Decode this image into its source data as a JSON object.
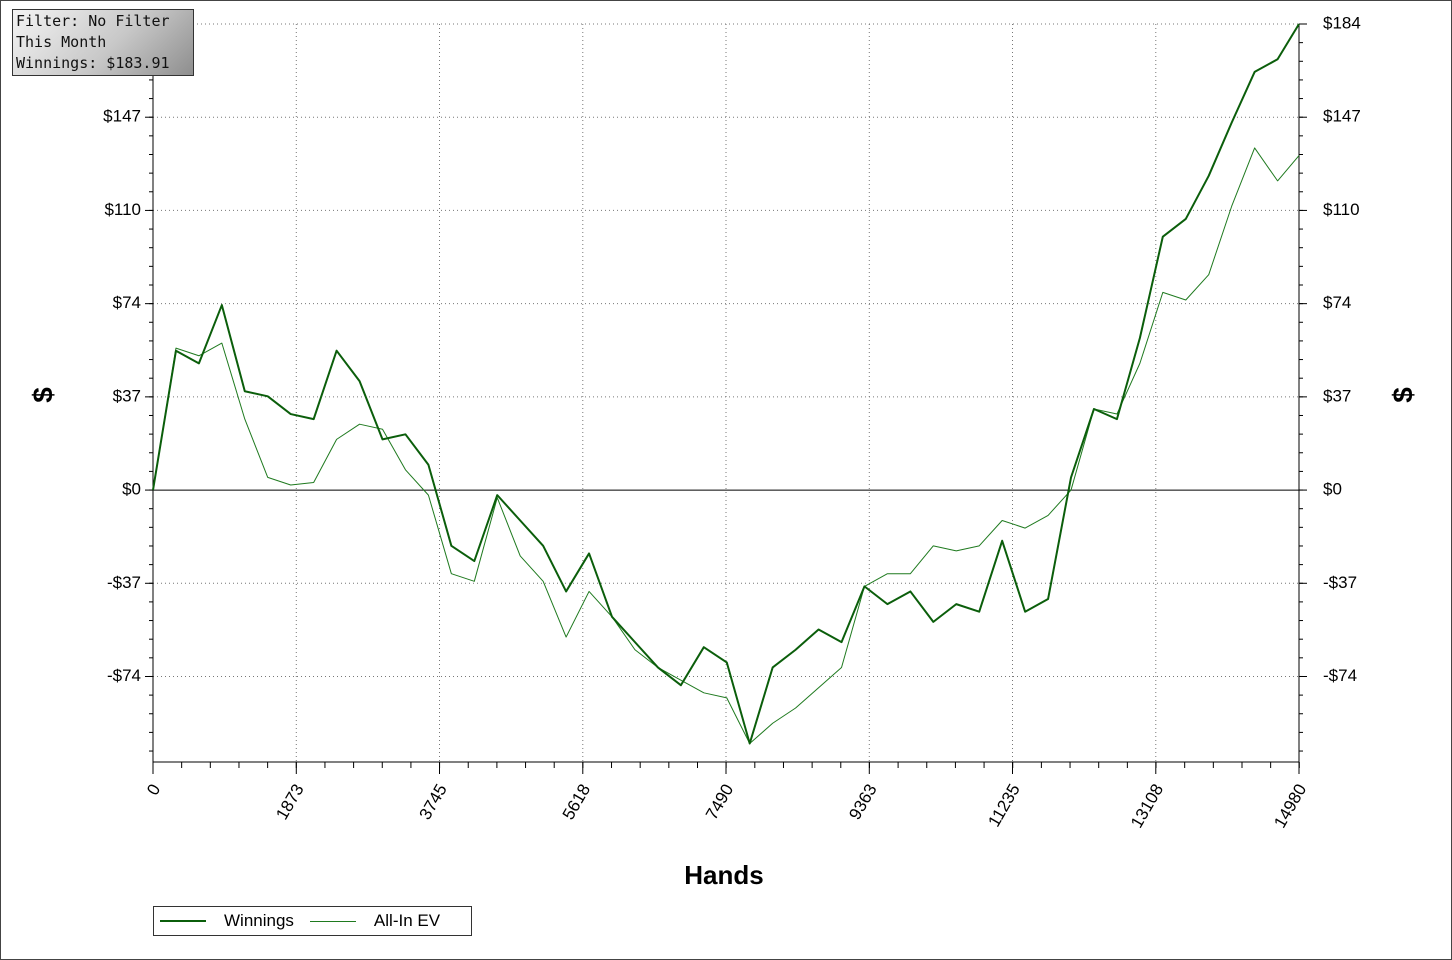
{
  "chart_data": {
    "type": "line",
    "annotations": [
      "Filter: No Filter",
      "This Month",
      "Winnings: $183.91"
    ],
    "x_label": "Hands",
    "y_label": "$",
    "x": [
      0,
      300,
      600,
      900,
      1200,
      1500,
      1800,
      2100,
      2400,
      2700,
      3000,
      3300,
      3600,
      3900,
      4200,
      4500,
      4800,
      5100,
      5400,
      5700,
      6000,
      6300,
      6600,
      6900,
      7200,
      7500,
      7800,
      8100,
      8400,
      8700,
      9000,
      9300,
      9600,
      9900,
      10200,
      10500,
      10800,
      11100,
      11400,
      11700,
      12000,
      12300,
      12600,
      12900,
      13200,
      13500,
      13800,
      14100,
      14400,
      14700,
      14980
    ],
    "series": [
      {
        "name": "Winnings",
        "color": "#0b5e0b",
        "width": 2,
        "values": [
          0,
          55,
          50,
          73,
          39,
          37,
          30,
          28,
          55,
          43,
          20,
          22,
          10,
          -22,
          -28,
          -2,
          -12,
          -22,
          -40,
          -25,
          -50,
          -60,
          -70,
          -77,
          -62,
          -68,
          -100,
          -70,
          -63,
          -55,
          -60,
          -38,
          -45,
          -40,
          -52,
          -45,
          -48,
          -20,
          -48,
          -43,
          5,
          32,
          28,
          60,
          100,
          107,
          124,
          145,
          165,
          170,
          183.91
        ]
      },
      {
        "name": "All-In EV",
        "color": "#1f7a1f",
        "width": 1,
        "values": [
          0,
          56,
          53,
          58,
          28,
          5,
          2,
          3,
          20,
          26,
          24,
          8,
          -2,
          -33,
          -36,
          -3,
          -26,
          -36,
          -58,
          -40,
          -50,
          -63,
          -70,
          -75,
          -80,
          -82,
          -100,
          -92,
          -86,
          -78,
          -70,
          -38,
          -33,
          -33,
          -22,
          -24,
          -22,
          -12,
          -15,
          -10,
          0,
          32,
          30,
          50,
          78,
          75,
          85,
          112,
          135,
          122,
          132
        ]
      }
    ],
    "xlim": [
      0,
      14980
    ],
    "ylim": [
      -107.3,
      183.91
    ],
    "xticks": [
      0,
      1873,
      3745,
      5618,
      7490,
      9363,
      11235,
      13108,
      14980
    ],
    "yticks": [
      {
        "value": 183.91,
        "label": "$184"
      },
      {
        "value": 147.13,
        "label": "$147"
      },
      {
        "value": 110.35,
        "label": "$110"
      },
      {
        "value": 73.56,
        "label": "$74"
      },
      {
        "value": 36.78,
        "label": "$37"
      },
      {
        "value": 0,
        "label": "$0"
      },
      {
        "value": -36.78,
        "label": "-$37"
      },
      {
        "value": -73.56,
        "label": "-$74"
      }
    ],
    "grid": true,
    "legend": "bottom-left"
  }
}
